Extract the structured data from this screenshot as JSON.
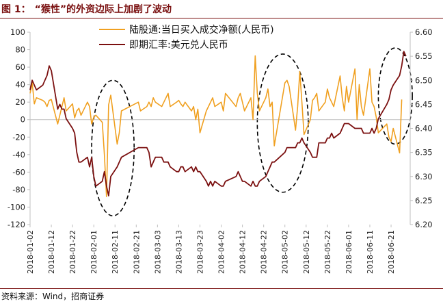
{
  "figure": {
    "label": "图 1：",
    "title": "“猴性”的外资边际上加剧了波动",
    "source": "资料来源：Wind，招商证券"
  },
  "chart_data": {
    "type": "line",
    "colors": {
      "northbound": "#f0a020",
      "fx": "#7b1010",
      "axis": "#bfbfbf",
      "ellipse": "#000000"
    },
    "x_ticks": [
      "2018-01-02",
      "2018-01-12",
      "2018-01-22",
      "2018-02-01",
      "2018-02-11",
      "2018-02-21",
      "2018-03-03",
      "2018-03-13",
      "2018-03-23",
      "2018-04-02",
      "2018-04-12",
      "2018-04-22",
      "2018-05-02",
      "2018-05-12",
      "2018-05-22",
      "2018-06-01",
      "2018-06-11",
      "2018-06-21"
    ],
    "x_range": [
      "2018-01-02",
      "2018-06-30"
    ],
    "y_left": {
      "min": -120,
      "max": 100,
      "ticks": [
        -120,
        -100,
        -80,
        -60,
        -40,
        -20,
        0,
        20,
        40,
        60,
        80,
        100
      ]
    },
    "y_right": {
      "min": 6.2,
      "max": 6.6,
      "ticks": [
        "6.20",
        "6.25",
        "6.30",
        "6.35",
        "6.40",
        "6.45",
        "6.50",
        "6.55",
        "6.60"
      ]
    },
    "legend_position": "top-center",
    "series": [
      {
        "name": "陆股通:当日买入成交净额(人民币)",
        "axis": "left",
        "points": [
          [
            "2018-01-02",
            30
          ],
          [
            "2018-01-03",
            42
          ],
          [
            "2018-01-04",
            18
          ],
          [
            "2018-01-05",
            25
          ],
          [
            "2018-01-08",
            22
          ],
          [
            "2018-01-09",
            20
          ],
          [
            "2018-01-10",
            15
          ],
          [
            "2018-01-11",
            22
          ],
          [
            "2018-01-12",
            23
          ],
          [
            "2018-01-15",
            -5
          ],
          [
            "2018-01-16",
            5
          ],
          [
            "2018-01-17",
            15
          ],
          [
            "2018-01-18",
            25
          ],
          [
            "2018-01-19",
            10
          ],
          [
            "2018-01-22",
            18
          ],
          [
            "2018-01-23",
            2
          ],
          [
            "2018-01-24",
            10
          ],
          [
            "2018-01-25",
            13
          ],
          [
            "2018-01-26",
            5
          ],
          [
            "2018-01-29",
            20
          ],
          [
            "2018-01-30",
            15
          ],
          [
            "2018-01-31",
            -5
          ],
          [
            "2018-02-01",
            3
          ],
          [
            "2018-02-02",
            5
          ],
          [
            "2018-02-05",
            -3
          ],
          [
            "2018-02-06",
            -40
          ],
          [
            "2018-02-07",
            -88
          ],
          [
            "2018-02-08",
            17
          ],
          [
            "2018-02-09",
            28
          ],
          [
            "2018-02-12",
            -28
          ],
          [
            "2018-02-13",
            -15
          ],
          [
            "2018-02-14",
            10
          ],
          [
            "2018-02-22",
            20
          ],
          [
            "2018-02-23",
            10
          ],
          [
            "2018-02-26",
            15
          ],
          [
            "2018-02-27",
            20
          ],
          [
            "2018-02-28",
            15
          ],
          [
            "2018-03-01",
            25
          ],
          [
            "2018-03-02",
            20
          ],
          [
            "2018-03-05",
            15
          ],
          [
            "2018-03-06",
            20
          ],
          [
            "2018-03-07",
            25
          ],
          [
            "2018-03-08",
            30
          ],
          [
            "2018-03-09",
            15
          ],
          [
            "2018-03-12",
            20
          ],
          [
            "2018-03-13",
            22
          ],
          [
            "2018-03-14",
            18
          ],
          [
            "2018-03-15",
            15
          ],
          [
            "2018-03-16",
            20
          ],
          [
            "2018-03-19",
            10
          ],
          [
            "2018-03-20",
            15
          ],
          [
            "2018-03-21",
            0
          ],
          [
            "2018-03-22",
            12
          ],
          [
            "2018-03-23",
            -15
          ],
          [
            "2018-03-26",
            10
          ],
          [
            "2018-03-27",
            15
          ],
          [
            "2018-03-28",
            20
          ],
          [
            "2018-03-29",
            25
          ],
          [
            "2018-03-30",
            15
          ],
          [
            "2018-04-02",
            20
          ],
          [
            "2018-04-03",
            10
          ],
          [
            "2018-04-04",
            30
          ],
          [
            "2018-04-09",
            15
          ],
          [
            "2018-04-10",
            25
          ],
          [
            "2018-04-11",
            30
          ],
          [
            "2018-04-12",
            20
          ],
          [
            "2018-04-13",
            10
          ],
          [
            "2018-04-16",
            25
          ],
          [
            "2018-04-17",
            0
          ],
          [
            "2018-04-18",
            73
          ],
          [
            "2018-04-19",
            30
          ],
          [
            "2018-04-20",
            10
          ],
          [
            "2018-04-23",
            25
          ],
          [
            "2018-04-24",
            35
          ],
          [
            "2018-04-25",
            15
          ],
          [
            "2018-04-26",
            20
          ],
          [
            "2018-04-27",
            -30
          ],
          [
            "2018-05-02",
            42
          ],
          [
            "2018-05-03",
            45
          ],
          [
            "2018-05-04",
            38
          ],
          [
            "2018-05-07",
            -12
          ],
          [
            "2018-05-08",
            15
          ],
          [
            "2018-05-09",
            55
          ],
          [
            "2018-05-10",
            20
          ],
          [
            "2018-05-11",
            -17
          ],
          [
            "2018-05-14",
            0
          ],
          [
            "2018-05-15",
            22
          ],
          [
            "2018-05-16",
            25
          ],
          [
            "2018-05-17",
            30
          ],
          [
            "2018-05-18",
            10
          ],
          [
            "2018-05-21",
            20
          ],
          [
            "2018-05-22",
            35
          ],
          [
            "2018-05-23",
            25
          ],
          [
            "2018-05-24",
            20
          ],
          [
            "2018-05-25",
            15
          ],
          [
            "2018-05-28",
            50
          ],
          [
            "2018-05-29",
            25
          ],
          [
            "2018-05-30",
            10
          ],
          [
            "2018-05-31",
            38
          ],
          [
            "2018-06-01",
            20
          ],
          [
            "2018-06-04",
            58
          ],
          [
            "2018-06-05",
            0
          ],
          [
            "2018-06-06",
            40
          ],
          [
            "2018-06-07",
            15
          ],
          [
            "2018-06-08",
            5
          ],
          [
            "2018-06-11",
            58
          ],
          [
            "2018-06-12",
            20
          ],
          [
            "2018-06-13",
            15
          ],
          [
            "2018-06-14",
            3
          ],
          [
            "2018-06-15",
            -15
          ],
          [
            "2018-06-19",
            -5
          ],
          [
            "2018-06-20",
            -20
          ],
          [
            "2018-06-21",
            -25
          ],
          [
            "2018-06-22",
            -10
          ],
          [
            "2018-06-25",
            -38
          ],
          [
            "2018-06-26",
            23
          ]
        ]
      },
      {
        "name": "即期汇率:美元兑人民币",
        "axis": "right",
        "points": [
          [
            "2018-01-02",
            6.48
          ],
          [
            "2018-01-03",
            6.5
          ],
          [
            "2018-01-04",
            6.49
          ],
          [
            "2018-01-05",
            6.48
          ],
          [
            "2018-01-08",
            6.49
          ],
          [
            "2018-01-09",
            6.5
          ],
          [
            "2018-01-10",
            6.51
          ],
          [
            "2018-01-11",
            6.53
          ],
          [
            "2018-01-12",
            6.52
          ],
          [
            "2018-01-15",
            6.44
          ],
          [
            "2018-01-16",
            6.45
          ],
          [
            "2018-01-17",
            6.44
          ],
          [
            "2018-01-18",
            6.44
          ],
          [
            "2018-01-19",
            6.42
          ],
          [
            "2018-01-22",
            6.4
          ],
          [
            "2018-01-23",
            6.39
          ],
          [
            "2018-01-24",
            6.35
          ],
          [
            "2018-01-25",
            6.33
          ],
          [
            "2018-01-26",
            6.33
          ],
          [
            "2018-01-29",
            6.34
          ],
          [
            "2018-01-30",
            6.32
          ],
          [
            "2018-01-31",
            6.34
          ],
          [
            "2018-02-01",
            6.3
          ],
          [
            "2018-02-02",
            6.28
          ],
          [
            "2018-02-05",
            6.29
          ],
          [
            "2018-02-06",
            6.31
          ],
          [
            "2018-02-07",
            6.28
          ],
          [
            "2018-02-08",
            6.26
          ],
          [
            "2018-02-09",
            6.3
          ],
          [
            "2018-02-12",
            6.32
          ],
          [
            "2018-02-13",
            6.33
          ],
          [
            "2018-02-14",
            6.34
          ],
          [
            "2018-02-22",
            6.36
          ],
          [
            "2018-02-26",
            6.36
          ],
          [
            "2018-02-27",
            6.35
          ],
          [
            "2018-02-28",
            6.32
          ],
          [
            "2018-03-01",
            6.33
          ],
          [
            "2018-03-02",
            6.34
          ],
          [
            "2018-03-05",
            6.34
          ],
          [
            "2018-03-06",
            6.33
          ],
          [
            "2018-03-07",
            6.33
          ],
          [
            "2018-03-08",
            6.33
          ],
          [
            "2018-03-09",
            6.32
          ],
          [
            "2018-03-12",
            6.31
          ],
          [
            "2018-03-13",
            6.31
          ],
          [
            "2018-03-14",
            6.32
          ],
          [
            "2018-03-15",
            6.32
          ],
          [
            "2018-03-16",
            6.31
          ],
          [
            "2018-03-19",
            6.32
          ],
          [
            "2018-03-20",
            6.31
          ],
          [
            "2018-03-21",
            6.32
          ],
          [
            "2018-03-22",
            6.31
          ],
          [
            "2018-03-23",
            6.31
          ],
          [
            "2018-03-26",
            6.29
          ],
          [
            "2018-03-27",
            6.28
          ],
          [
            "2018-03-28",
            6.29
          ],
          [
            "2018-03-29",
            6.28
          ],
          [
            "2018-03-30",
            6.29
          ],
          [
            "2018-04-02",
            6.28
          ],
          [
            "2018-04-03",
            6.28
          ],
          [
            "2018-04-04",
            6.29
          ],
          [
            "2018-04-09",
            6.3
          ],
          [
            "2018-04-10",
            6.31
          ],
          [
            "2018-04-11",
            6.3
          ],
          [
            "2018-04-12",
            6.29
          ],
          [
            "2018-04-13",
            6.29
          ],
          [
            "2018-04-16",
            6.28
          ],
          [
            "2018-04-17",
            6.29
          ],
          [
            "2018-04-18",
            6.28
          ],
          [
            "2018-04-19",
            6.28
          ],
          [
            "2018-04-20",
            6.29
          ],
          [
            "2018-04-23",
            6.3
          ],
          [
            "2018-04-24",
            6.31
          ],
          [
            "2018-04-25",
            6.32
          ],
          [
            "2018-04-26",
            6.33
          ],
          [
            "2018-04-27",
            6.33
          ],
          [
            "2018-05-02",
            6.35
          ],
          [
            "2018-05-03",
            6.36
          ],
          [
            "2018-05-04",
            6.36
          ],
          [
            "2018-05-07",
            6.36
          ],
          [
            "2018-05-08",
            6.37
          ],
          [
            "2018-05-09",
            6.37
          ],
          [
            "2018-05-10",
            6.38
          ],
          [
            "2018-05-11",
            6.37
          ],
          [
            "2018-05-14",
            6.35
          ],
          [
            "2018-05-15",
            6.34
          ],
          [
            "2018-05-16",
            6.34
          ],
          [
            "2018-05-17",
            6.34
          ],
          [
            "2018-05-18",
            6.37
          ],
          [
            "2018-05-21",
            6.37
          ],
          [
            "2018-05-22",
            6.38
          ],
          [
            "2018-05-23",
            6.38
          ],
          [
            "2018-05-24",
            6.39
          ],
          [
            "2018-05-25",
            6.38
          ],
          [
            "2018-05-28",
            6.39
          ],
          [
            "2018-05-29",
            6.4
          ],
          [
            "2018-05-30",
            6.41
          ],
          [
            "2018-05-31",
            6.41
          ],
          [
            "2018-06-01",
            6.41
          ],
          [
            "2018-06-04",
            6.4
          ],
          [
            "2018-06-05",
            6.4
          ],
          [
            "2018-06-06",
            6.4
          ],
          [
            "2018-06-07",
            6.4
          ],
          [
            "2018-06-08",
            6.39
          ],
          [
            "2018-06-11",
            6.39
          ],
          [
            "2018-06-12",
            6.4
          ],
          [
            "2018-06-13",
            6.39
          ],
          [
            "2018-06-14",
            6.4
          ],
          [
            "2018-06-15",
            6.42
          ],
          [
            "2018-06-19",
            6.45
          ],
          [
            "2018-06-20",
            6.46
          ],
          [
            "2018-06-21",
            6.48
          ],
          [
            "2018-06-22",
            6.49
          ],
          [
            "2018-06-25",
            6.51
          ],
          [
            "2018-06-26",
            6.53
          ],
          [
            "2018-06-27",
            6.56
          ],
          [
            "2018-06-28",
            6.55
          ]
        ]
      }
    ],
    "annotations": [
      {
        "type": "dashed-ellipse",
        "x_center": "2018-02-10",
        "x_halfwidth_days": 10,
        "y_left_top": 45,
        "y_left_bottom": -110
      },
      {
        "type": "dashed-ellipse",
        "x_center": "2018-05-01",
        "x_halfwidth_days": 12,
        "y_left_top": 75,
        "y_left_bottom": -83
      },
      {
        "type": "dashed-ellipse",
        "x_center": "2018-06-23",
        "x_halfwidth_days": 8,
        "y_left_top": 82,
        "y_left_bottom": -28
      }
    ]
  }
}
